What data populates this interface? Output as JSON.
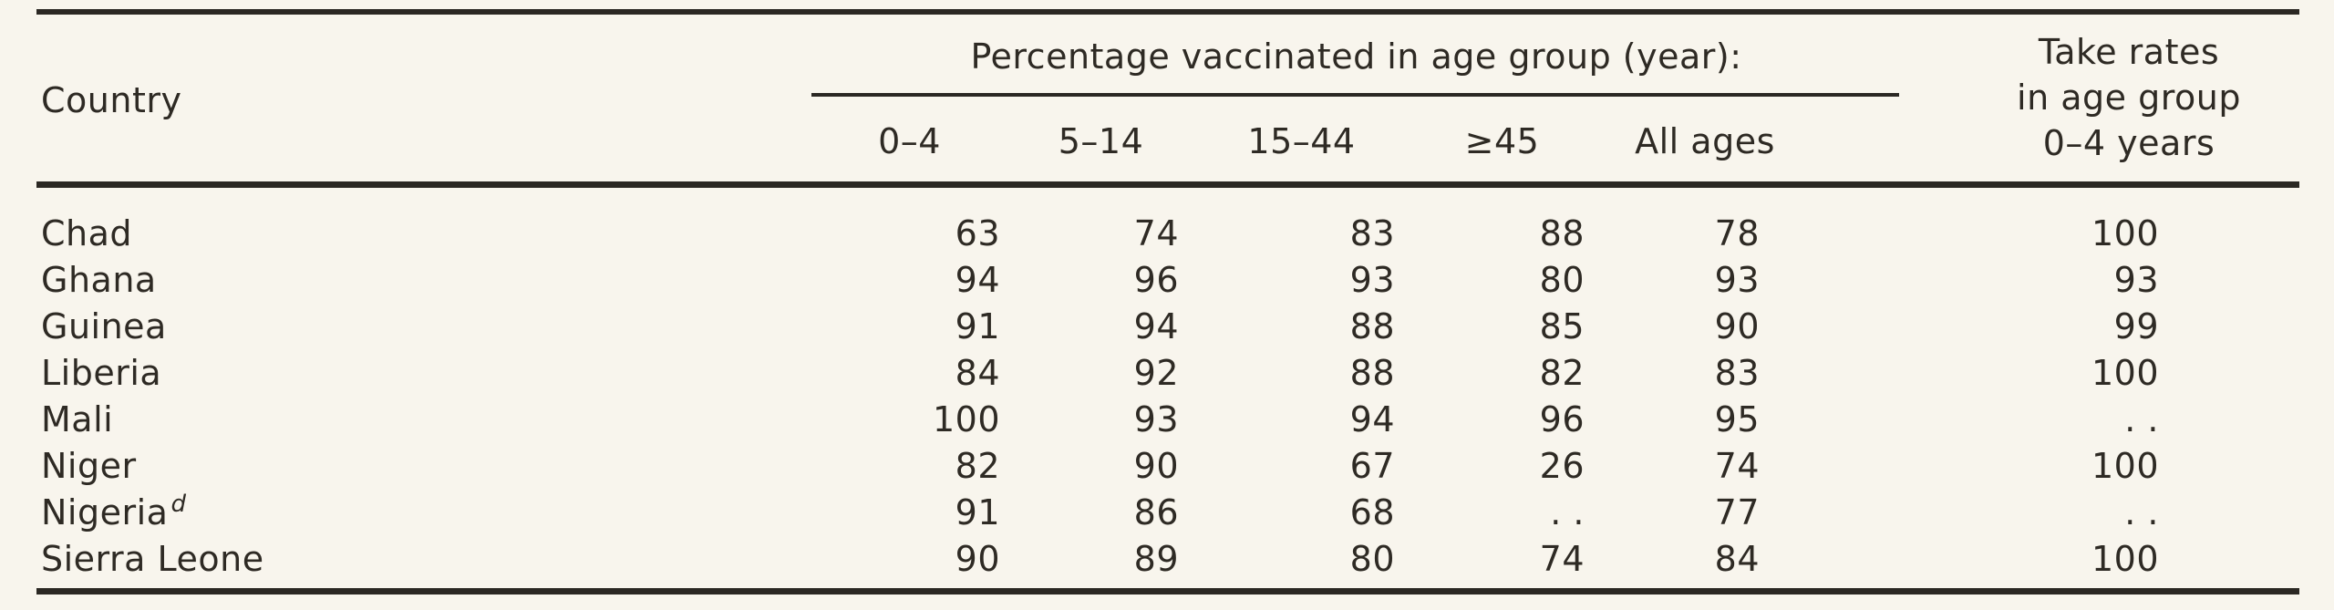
{
  "page": {
    "background_color": "#f8f5ed",
    "ink_color": "#2e2a24",
    "rule_color": "#2b2823"
  },
  "table": {
    "country_header": "Country",
    "group_header": "Percentage vaccinated in age group (year):",
    "age_columns": [
      "0–4",
      "5–14",
      "15–44",
      "≥45",
      "All ages"
    ],
    "take_rates_header_lines": [
      "Take rates",
      "in age group",
      "0–4 years"
    ],
    "missing_value_marker": ". .",
    "rows": [
      {
        "country": "Chad",
        "sup": "",
        "values": [
          "63",
          "74",
          "83",
          "88",
          "78"
        ],
        "take_rate": "100"
      },
      {
        "country": "Ghana",
        "sup": "",
        "values": [
          "94",
          "96",
          "93",
          "80",
          "93"
        ],
        "take_rate": "93"
      },
      {
        "country": "Guinea",
        "sup": "",
        "values": [
          "91",
          "94",
          "88",
          "85",
          "90"
        ],
        "take_rate": "99"
      },
      {
        "country": "Liberia",
        "sup": "",
        "values": [
          "84",
          "92",
          "88",
          "82",
          "83"
        ],
        "take_rate": "100"
      },
      {
        "country": "Mali",
        "sup": "",
        "values": [
          "100",
          "93",
          "94",
          "96",
          "95"
        ],
        "take_rate": ". ."
      },
      {
        "country": "Niger",
        "sup": "",
        "values": [
          "82",
          "90",
          "67",
          "26",
          "74"
        ],
        "take_rate": "100"
      },
      {
        "country": "Nigeria",
        "sup": "d",
        "values": [
          "91",
          "86",
          "68",
          ". .",
          "77"
        ],
        "take_rate": ". ."
      },
      {
        "country": "Sierra Leone",
        "sup": "",
        "values": [
          "90",
          "89",
          "80",
          "74",
          "84"
        ],
        "take_rate": "100"
      }
    ]
  }
}
